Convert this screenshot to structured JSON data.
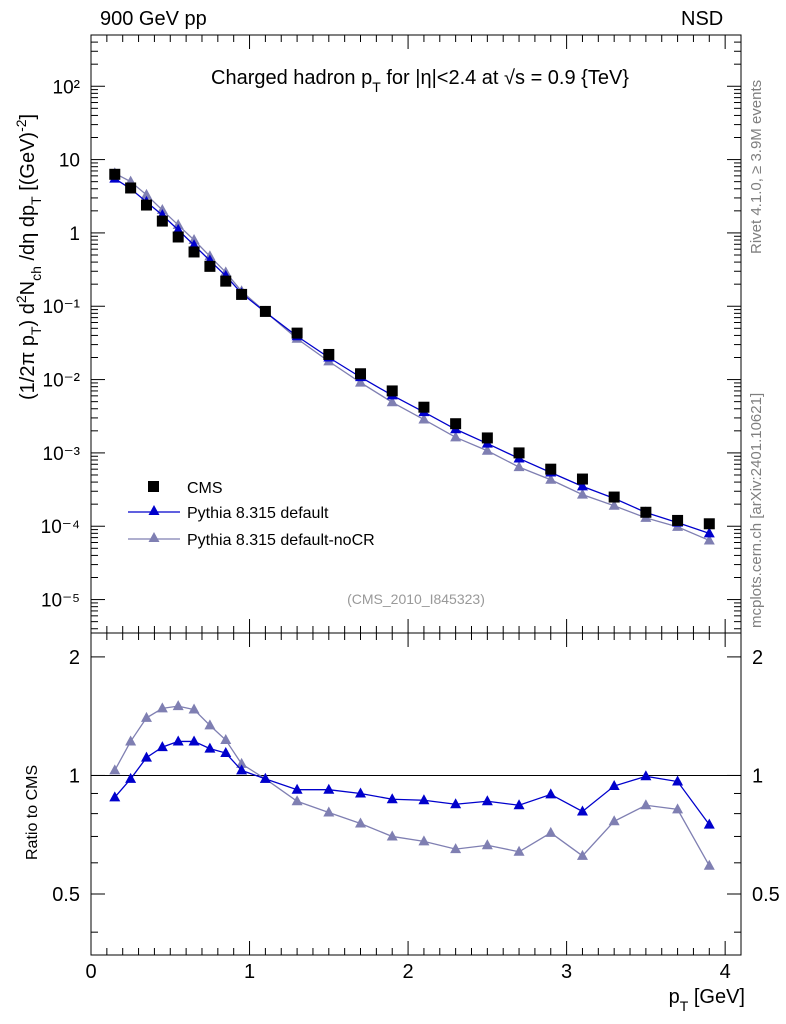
{
  "header": {
    "left_label": "900 GeV pp",
    "right_label": "NSD"
  },
  "side_labels": {
    "rivet": "Rivet 4.1.0, ≥ 3.9M events",
    "site": "mcplots.cern.ch [arXiv:2401.10621]"
  },
  "chart_data": {
    "type": "scatter",
    "title": "Charged hadron p_T for |η|<2.4 at √s = 0.9 {TeV}",
    "analysis_tag": "(CMS_2010_I845323)",
    "xlabel": "p_T [GeV]",
    "ylabel": "(1/2π p_T) d²N_ch/dη dp_T [(GeV)⁻²]",
    "ratio_ylabel": "Ratio to CMS",
    "xlim": [
      0,
      4.1
    ],
    "ylim_log": [
      3.5e-06,
      500
    ],
    "ratio_ylim": [
      0.35,
      2.3
    ],
    "x_ticks": [
      "0",
      "1",
      "2",
      "3",
      "4"
    ],
    "y_ticks": [
      "10⁻⁵",
      "10⁻⁴",
      "10⁻³",
      "10⁻²",
      "10⁻¹",
      "1",
      "10",
      "10²"
    ],
    "ratio_ticks": [
      "0.5",
      "1",
      "2"
    ],
    "legend_position": "lower-left",
    "x": [
      0.15,
      0.25,
      0.35,
      0.45,
      0.55,
      0.65,
      0.75,
      0.85,
      0.95,
      1.1,
      1.3,
      1.5,
      1.7,
      1.9,
      2.1,
      2.3,
      2.5,
      2.7,
      2.9,
      3.1,
      3.3,
      3.5,
      3.7,
      3.9
    ],
    "series": [
      {
        "name": "CMS",
        "color": "#000000",
        "marker": "square",
        "values": [
          6.3,
          4.1,
          2.4,
          1.45,
          0.88,
          0.55,
          0.35,
          0.22,
          0.145,
          0.085,
          0.043,
          0.022,
          0.012,
          0.007,
          0.0042,
          0.0025,
          0.0016,
          0.001,
          0.0006,
          0.00044,
          0.00025,
          0.000155,
          0.00012,
          0.000108
        ],
        "ratio": [
          1,
          1,
          1,
          1,
          1,
          1,
          1,
          1,
          1,
          1,
          1,
          1,
          1,
          1,
          1,
          1,
          1,
          1,
          1,
          1,
          1,
          1,
          1,
          1
        ]
      },
      {
        "name": "Pythia 8.315 default",
        "color": "#0000cc",
        "marker": "triangle",
        "values": [
          5.5,
          4.0,
          2.65,
          1.75,
          1.1,
          0.68,
          0.42,
          0.26,
          0.15,
          0.083,
          0.039,
          0.02,
          0.0108,
          0.0061,
          0.0036,
          0.0021,
          0.00134,
          0.00084,
          0.00054,
          0.00035,
          0.00024,
          0.000154,
          0.000112,
          8e-05
        ],
        "ratio": [
          0.88,
          0.98,
          1.11,
          1.18,
          1.22,
          1.22,
          1.17,
          1.14,
          1.03,
          0.98,
          0.92,
          0.92,
          0.9,
          0.87,
          0.865,
          0.845,
          0.86,
          0.84,
          0.895,
          0.81,
          0.94,
          0.995,
          0.965,
          0.75
        ]
      },
      {
        "name": "Pythia 8.315 default-noCR",
        "color": "#7f7fb2",
        "marker": "triangle",
        "values": [
          6.5,
          5.0,
          3.3,
          2.05,
          1.28,
          0.8,
          0.48,
          0.29,
          0.16,
          0.084,
          0.036,
          0.0177,
          0.0091,
          0.0049,
          0.00285,
          0.00163,
          0.00107,
          0.00064,
          0.00043,
          0.00027,
          0.00019,
          0.00013,
          9.8e-05,
          6.4e-05
        ],
        "ratio": [
          1.03,
          1.22,
          1.4,
          1.48,
          1.5,
          1.47,
          1.34,
          1.23,
          1.07,
          0.98,
          0.86,
          0.805,
          0.755,
          0.7,
          0.68,
          0.65,
          0.665,
          0.64,
          0.715,
          0.625,
          0.765,
          0.84,
          0.82,
          0.59
        ]
      }
    ]
  }
}
